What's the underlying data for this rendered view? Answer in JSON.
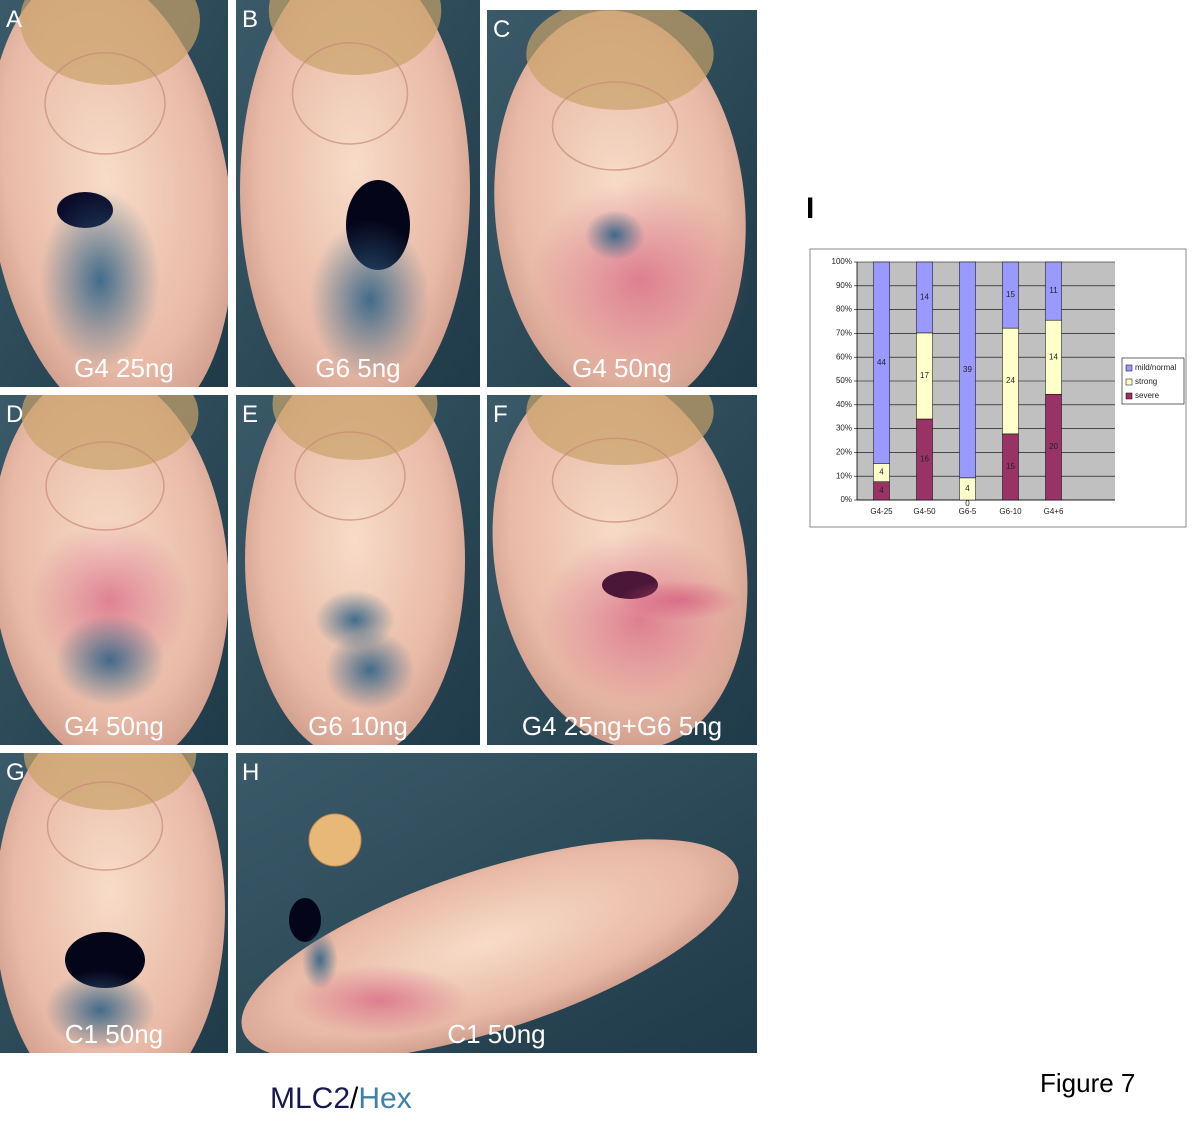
{
  "panels": [
    {
      "letter": "A",
      "caption": "G4 25ng"
    },
    {
      "letter": "B",
      "caption": "G6 5ng"
    },
    {
      "letter": "C",
      "caption": "G4 50ng"
    },
    {
      "letter": "D",
      "caption": "G4 50ng"
    },
    {
      "letter": "E",
      "caption": "G6 10ng"
    },
    {
      "letter": "F",
      "caption": "G4 25ng+G6 5ng"
    },
    {
      "letter": "G",
      "caption": "C1 50ng"
    },
    {
      "letter": "H",
      "caption": "C1 50ng"
    }
  ],
  "chart_label": "I",
  "chart_data": {
    "type": "stacked-percent-bar",
    "categories": [
      "G4-25",
      "G4-50",
      "G6-5",
      "G6-10",
      "G4+6"
    ],
    "series": [
      {
        "name": "severe",
        "color": "#993366",
        "values": [
          4,
          16,
          0,
          15,
          20
        ]
      },
      {
        "name": "strong",
        "color": "#ffffcc",
        "values": [
          4,
          17,
          4,
          24,
          14
        ]
      },
      {
        "name": "mild/normal",
        "color": "#9999ff",
        "values": [
          44,
          14,
          39,
          15,
          11
        ]
      }
    ],
    "ylim": [
      0,
      100
    ],
    "yticks": [
      {
        "value": 0,
        "label": "0%"
      },
      {
        "value": 10,
        "label": "10%"
      },
      {
        "value": 20,
        "label": "20%"
      },
      {
        "value": 30,
        "label": "30%"
      },
      {
        "value": 40,
        "label": "40%"
      },
      {
        "value": 50,
        "label": "50%"
      },
      {
        "value": 60,
        "label": "60%"
      },
      {
        "value": 70,
        "label": "70%"
      },
      {
        "value": 80,
        "label": "80%"
      },
      {
        "value": 90,
        "label": "90%"
      },
      {
        "value": 100,
        "label": "100%"
      }
    ],
    "grid": true,
    "legend": "right"
  },
  "footer": {
    "marker1": "MLC2",
    "separator": "/",
    "marker2": "Hex"
  },
  "figure_label": "Figure 7"
}
